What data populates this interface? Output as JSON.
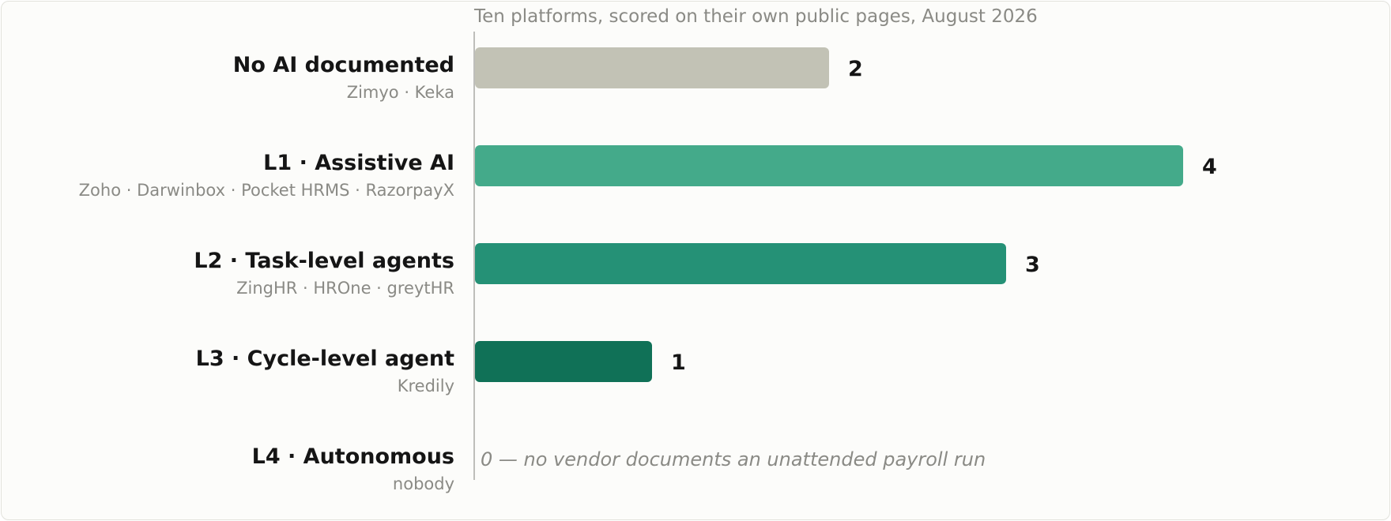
{
  "chart_data": {
    "type": "bar",
    "orientation": "horizontal",
    "subtitle": "Ten platforms, scored on their own public pages, August 2026",
    "categories": [
      "No AI documented",
      "L1 · Assistive AI",
      "L2 · Task-level agents",
      "L3 · Cycle-level agent",
      "L4 · Autonomous"
    ],
    "vendors": [
      "Zimyo · Keka",
      "Zoho · Darwinbox · Pocket HRMS · RazorpayX",
      "ZingHR · HROne · greytHR",
      "Kredily",
      "nobody"
    ],
    "values": [
      2,
      4,
      3,
      1,
      0
    ],
    "value_labels": [
      "2",
      "4",
      "3",
      "1",
      "0 — no vendor documents an unattended payroll run"
    ],
    "colors": [
      "#c2c2b5",
      "#44aa8a",
      "#259176",
      "#107157",
      "#107157"
    ],
    "xlim": [
      0,
      4
    ],
    "grid": false,
    "legend": "none"
  }
}
